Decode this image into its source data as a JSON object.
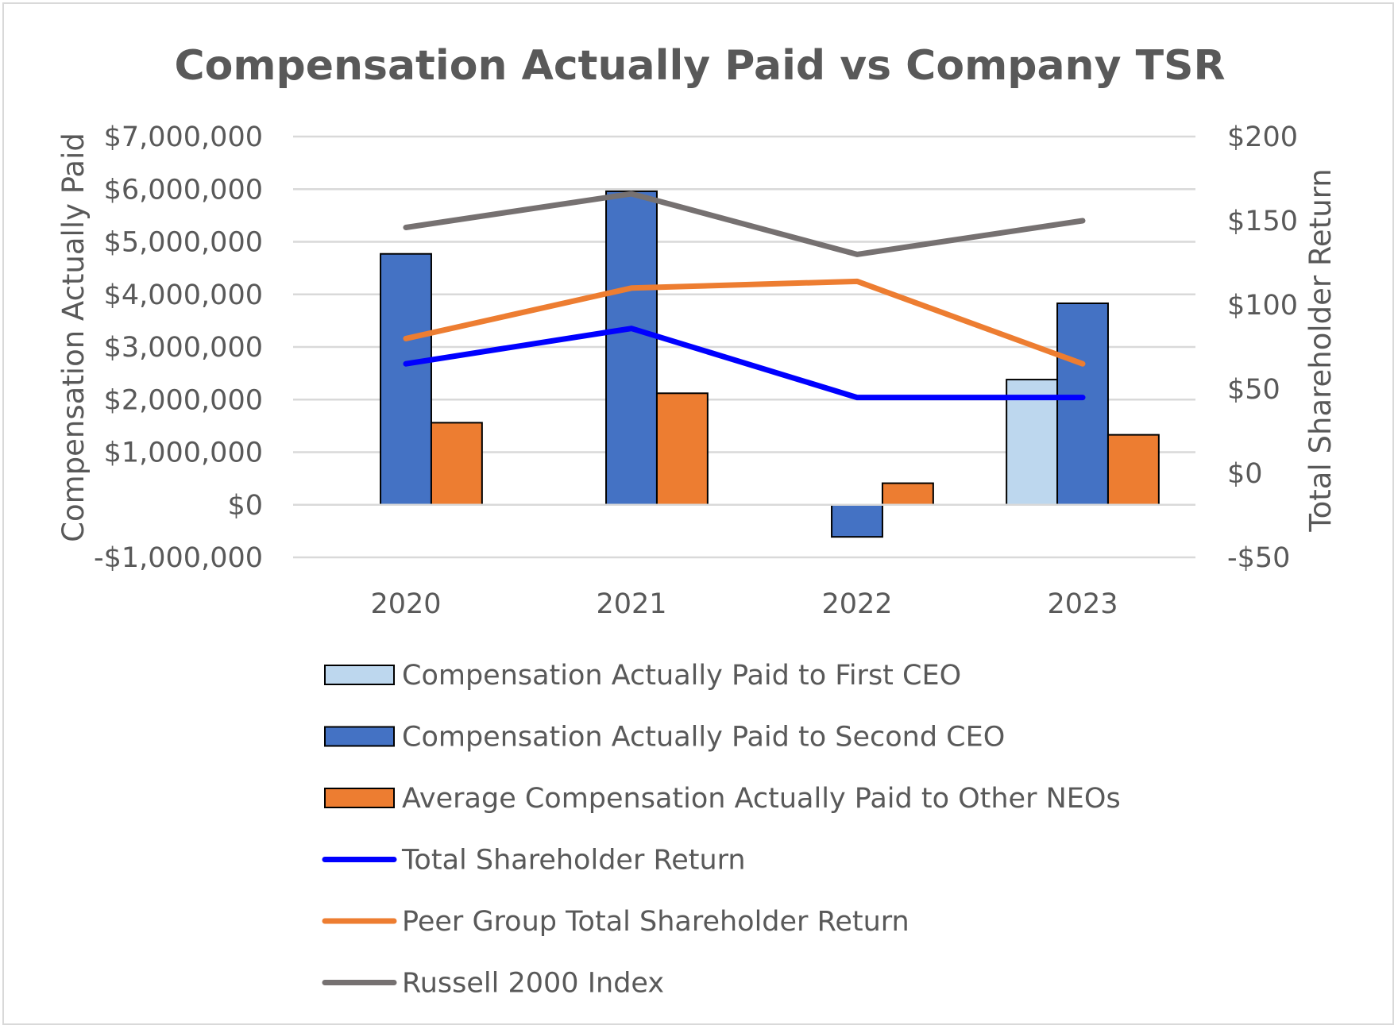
{
  "chart_data": {
    "type": "bar",
    "title": "Compensation Actually Paid vs Company TSR",
    "categories": [
      "2020",
      "2021",
      "2022",
      "2023"
    ],
    "ylabel": "Compensation Actually Paid",
    "y2label": "Total Shareholder Return",
    "ylim": [
      -1000000,
      7000000
    ],
    "y2lim": [
      -50,
      200
    ],
    "yticks": [
      {
        "value": 7000000,
        "label": "$7,000,000"
      },
      {
        "value": 6000000,
        "label": "$6,000,000"
      },
      {
        "value": 5000000,
        "label": "$5,000,000"
      },
      {
        "value": 4000000,
        "label": "$4,000,000"
      },
      {
        "value": 3000000,
        "label": "$3,000,000"
      },
      {
        "value": 2000000,
        "label": "$2,000,000"
      },
      {
        "value": 1000000,
        "label": "$1,000,000"
      },
      {
        "value": 0,
        "label": "$0"
      },
      {
        "value": -1000000,
        "label": "-$1,000,000"
      }
    ],
    "y2ticks": [
      {
        "value": 200,
        "label": "$200"
      },
      {
        "value": 150,
        "label": "$150"
      },
      {
        "value": 100,
        "label": "$100"
      },
      {
        "value": 50,
        "label": "$50"
      },
      {
        "value": 0,
        "label": "$0"
      },
      {
        "value": -50,
        "label": "-$50"
      }
    ],
    "grid": true,
    "legend_position": "bottom",
    "bar_series": [
      {
        "name": "Compensation Actually Paid to First CEO",
        "color": "#bdd7ee",
        "values": [
          null,
          null,
          null,
          2380000
        ]
      },
      {
        "name": "Compensation Actually Paid to Second CEO",
        "color": "#4472c4",
        "values": [
          4770000,
          5960000,
          -610000,
          3830000
        ]
      },
      {
        "name": "Average Compensation Actually Paid to Other NEOs",
        "color": "#ed7d31",
        "values": [
          1560000,
          2120000,
          410000,
          1330000
        ]
      }
    ],
    "line_series": [
      {
        "name": "Total Shareholder Return",
        "color": "#0000ff",
        "axis": "right",
        "values": [
          65,
          86,
          45,
          45
        ]
      },
      {
        "name": "Peer Group Total Shareholder Return",
        "color": "#ed7d31",
        "axis": "right",
        "values": [
          80,
          110,
          114,
          65
        ]
      },
      {
        "name": "Russell 2000 Index",
        "color": "#767171",
        "axis": "right",
        "values": [
          146,
          166,
          130,
          150
        ]
      }
    ]
  }
}
